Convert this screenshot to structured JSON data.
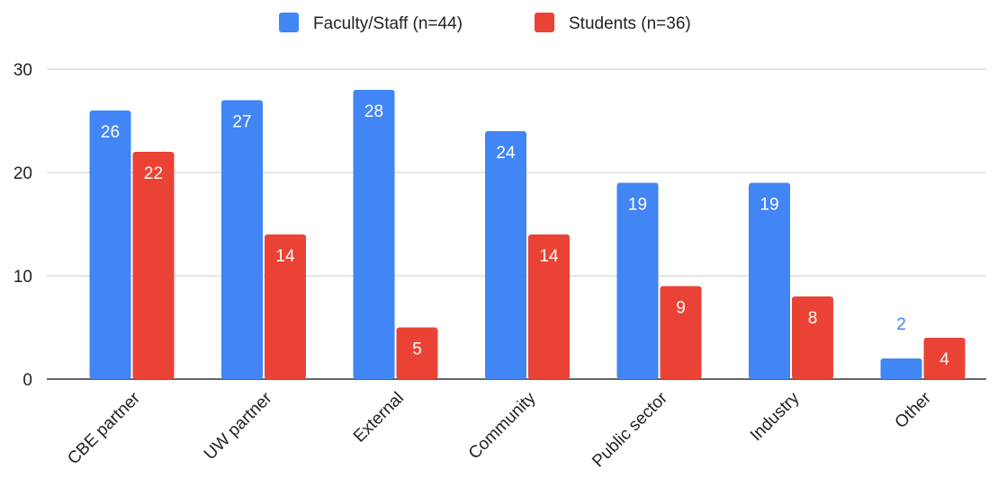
{
  "chart_data": {
    "type": "bar",
    "categories": [
      "CBE partner",
      "UW partner",
      "External",
      "Community",
      "Public sector",
      "Industry",
      "Other"
    ],
    "series": [
      {
        "name": "Faculty/Staff (n=44)",
        "color": "#4285f4",
        "values": [
          26,
          27,
          28,
          24,
          19,
          19,
          2
        ]
      },
      {
        "name": "Students (n=36)",
        "color": "#ea4335",
        "values": [
          22,
          14,
          5,
          14,
          9,
          8,
          4
        ]
      }
    ],
    "ylim": [
      0,
      30
    ],
    "yticks": [
      0,
      10,
      20,
      30
    ],
    "grid": true,
    "legend": "top-center",
    "data_labels": true,
    "title": "",
    "xlabel": "",
    "ylabel": ""
  }
}
